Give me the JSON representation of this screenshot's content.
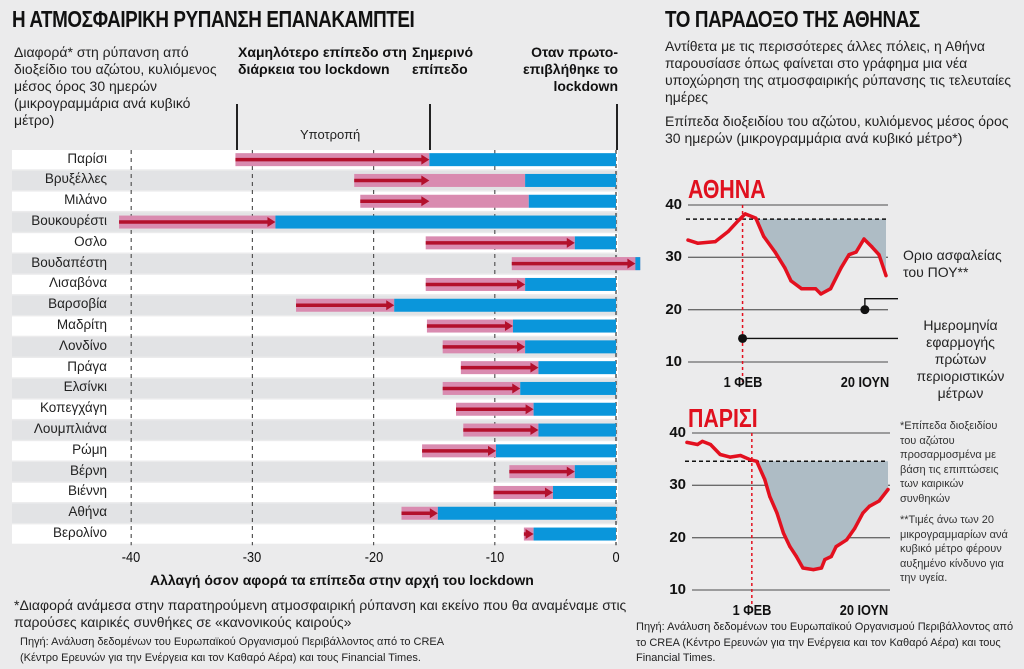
{
  "left": {
    "title": "Η ΑΤΜΟΣΦΑΙΡΙΚΗ ΡΥΠΑΝΣΗ ΕΠΑΝΑΚΑΜΠΤΕΙ",
    "intro": "Διαφορά* στη ρύπανση από διοξείδιο του αζώτου, κυλιόμενος μέσος όρος 30 ημερών (μικρογραμμάρια ανά κυβικό μέτρο)",
    "col_lowest": "Χαμηλότερο επίπεδο στη διάρκεια του lockdown",
    "col_today": "Σημερινό επίπεδο",
    "col_start": "Οταν πρωτο-επιβλήθηκε το lockdown",
    "relapse_label": "Υποτροπή",
    "footnote": "*Διαφορά ανάμεσα στην παρατηρούμενη ατμοσφαιρική ρύπανση και εκείνο που θα αναμέναμε στις παρούσες καιρικές συνθήκες σε «κανονικούς καιρούς»",
    "source_line1": "Πηγή: Ανάλυση δεδομένων του Ευρωπαϊκού Οργανισμού Περιβάλλοντος από το CREA",
    "source_line2": "(Κέντρο Ερευνών για την Ενέργεια και τον Καθαρό Αέρα) και τους Financial Times."
  },
  "right": {
    "title": "ΤΟ ΠΑΡΑΔΟΞΟ ΤΗΣ ΑΘΗΝΑΣ",
    "intro": "Αντίθετα με τις περισσότερες άλλες πόλεις, η Αθήνα παρουσίασε όπως φαίνεται στο γράφημα μια νέα υποχώρηση της ατμοσφαιρικής ρύπανσης τις τελευταίες ημέρες",
    "subtitle": "Επίπεδα διοξειδίου του αζώτου, κυλιόμενος μέσος όρος 30 ημερών (μικρογραμμάρια ανά κυβικό μέτρο*)",
    "who_limit_note": "Οριο ασφαλείας του ΠΟΥ**",
    "restrictions_note": "Ημερομηνία εφαρμογής πρώτων περιοριστικών μέτρων",
    "footnote1": "*Επίπεδα διοξειδίου του αζώτου προσαρμοσμένα με βάση τις επιπτώσεις των καιρικών συνθηκών",
    "footnote2": "**Τιμές άνω των 20 μικρογραμμαρίων ανά κυβικό μέτρο φέρουν αυξημένο κίνδυνο για την υγεία.",
    "source": "Πηγή: Ανάλυση δεδομένων του Ευρωπαϊκού Οργανισμού Περιβάλλοντος από το CREA (Κέντρο Ερευνών για την Ενέργεια και τον Καθαρό Αέρα) και τους Financial Times."
  },
  "colors": {
    "relapse_band": "#d98bb0",
    "relapse_arrow": "#b3102c",
    "current_bar": "#0a96db",
    "line": "#e3101f",
    "shade": "#aebcc5",
    "city_title": "#e0101e"
  },
  "chart_data": [
    {
      "type": "bar",
      "orientation": "horizontal",
      "xlabel": "Αλλαγή όσον αφορά τα επίπεδα στην αρχή του lockdown",
      "xlim": [
        -42,
        2
      ],
      "xticks": [
        -40,
        -30,
        -20,
        -10,
        0
      ],
      "xtick_labels": [
        "-40",
        "-30",
        "-20",
        "-10",
        "0"
      ],
      "grid": "vertical dashed",
      "rows": [
        {
          "city": "Παρίσι",
          "lowest": -31.4,
          "arrow_to": -15.4,
          "today": -15.4
        },
        {
          "city": "Βρυξέλλες",
          "lowest": -21.6,
          "arrow_to": -15.4,
          "today": -7.5
        },
        {
          "city": "Μιλάνο",
          "lowest": -21.1,
          "arrow_to": -15.4,
          "today": -7.2
        },
        {
          "city": "Βουκουρέστι",
          "lowest": -41.0,
          "arrow_to": -28.1,
          "today": -28.1
        },
        {
          "city": "Οσλο",
          "lowest": -15.7,
          "arrow_to": -3.4,
          "today": -3.4
        },
        {
          "city": "Βουδαπέστη",
          "lowest": -8.6,
          "arrow_to": 1.6,
          "today": 2.0
        },
        {
          "city": "Λισαβόνα",
          "lowest": -15.7,
          "arrow_to": -7.5,
          "today": -7.5
        },
        {
          "city": "Βαρσοβία",
          "lowest": -26.4,
          "arrow_to": -18.3,
          "today": -18.3
        },
        {
          "city": "Μαδρίτη",
          "lowest": -15.6,
          "arrow_to": -8.5,
          "today": -8.5
        },
        {
          "city": "Λονδίνο",
          "lowest": -14.3,
          "arrow_to": -7.5,
          "today": -7.5
        },
        {
          "city": "Πράγα",
          "lowest": -12.8,
          "arrow_to": -6.4,
          "today": -6.4
        },
        {
          "city": "Ελσίνκι",
          "lowest": -14.3,
          "arrow_to": -7.9,
          "today": -7.9
        },
        {
          "city": "Κοπεγχάγη",
          "lowest": -13.2,
          "arrow_to": -6.8,
          "today": -6.8
        },
        {
          "city": "Λουμπλιάνα",
          "lowest": -12.6,
          "arrow_to": -6.4,
          "today": -6.4
        },
        {
          "city": "Ρώμη",
          "lowest": -16.0,
          "arrow_to": -9.9,
          "today": -9.9
        },
        {
          "city": "Βέρνη",
          "lowest": -8.8,
          "arrow_to": -3.4,
          "today": -3.4
        },
        {
          "city": "Βιέννη",
          "lowest": -10.1,
          "arrow_to": -5.2,
          "today": -5.2
        },
        {
          "city": "Αθήνα",
          "lowest": -17.7,
          "arrow_to": -14.7,
          "today": -14.7
        },
        {
          "city": "Βερολίνο",
          "lowest": -7.6,
          "arrow_to": -6.8,
          "today": -6.8
        }
      ]
    },
    {
      "type": "line",
      "title": "ΑΘΗΝΑ",
      "ylim": [
        10,
        40
      ],
      "yticks": [
        "10",
        "20",
        "30",
        "40"
      ],
      "xtick_labels": [
        "1 ΦΕΒ",
        "20 ΙΟΥΝ"
      ],
      "xtick_dates": [
        "02-01",
        "06-20"
      ],
      "lockdown_level": 37.3,
      "who_limit": 20,
      "restriction_date": "02-01",
      "series": [
        {
          "x": [
            "12-01",
            "12-12",
            "01-01",
            "01-16",
            "01-27",
            "02-04",
            "02-16",
            "02-25",
            "03-10",
            "03-21",
            "03-28",
            "04-09",
            "04-25",
            "05-01",
            "05-12",
            "05-24",
            "06-02",
            "06-10",
            "06-19",
            "06-28",
            "07-06",
            "07-14"
          ],
          "y": [
            33.3,
            32.7,
            33.0,
            35.0,
            37.0,
            38.3,
            37.5,
            34.0,
            31.0,
            28.0,
            25.5,
            24.0,
            24.0,
            23.0,
            24.0,
            28.0,
            30.5,
            31.0,
            33.5,
            32.0,
            30.5,
            26.5
          ]
        }
      ]
    },
    {
      "type": "line",
      "title": "ΠΑΡΙΣΙ",
      "ylim": [
        10,
        40
      ],
      "yticks": [
        "10",
        "20",
        "30",
        "40"
      ],
      "xtick_labels": [
        "1 ΦΕΒ",
        "20 ΙΟΥΝ"
      ],
      "xtick_dates": [
        "02-01",
        "06-20"
      ],
      "lockdown_level": 34.6,
      "restriction_date": "02-01",
      "series": [
        {
          "x": [
            "11-13",
            "11-26",
            "12-02",
            "12-12",
            "12-24",
            "01-05",
            "01-18",
            "01-30",
            "02-07",
            "02-17",
            "02-23",
            "03-04",
            "03-12",
            "03-20",
            "03-28",
            "04-05",
            "04-18",
            "04-28",
            "05-02",
            "05-10",
            "05-16",
            "05-29",
            "06-08",
            "06-18",
            "06-26",
            "07-08",
            "07-19"
          ],
          "y": [
            38.2,
            37.8,
            38.4,
            37.8,
            35.9,
            35.4,
            35.7,
            34.9,
            34.6,
            31.1,
            27.9,
            24.7,
            20.9,
            18.3,
            16.4,
            14.2,
            13.9,
            14.2,
            15.8,
            16.4,
            18.3,
            19.6,
            21.8,
            24.7,
            26.0,
            27.0,
            29.2
          ]
        }
      ]
    }
  ]
}
